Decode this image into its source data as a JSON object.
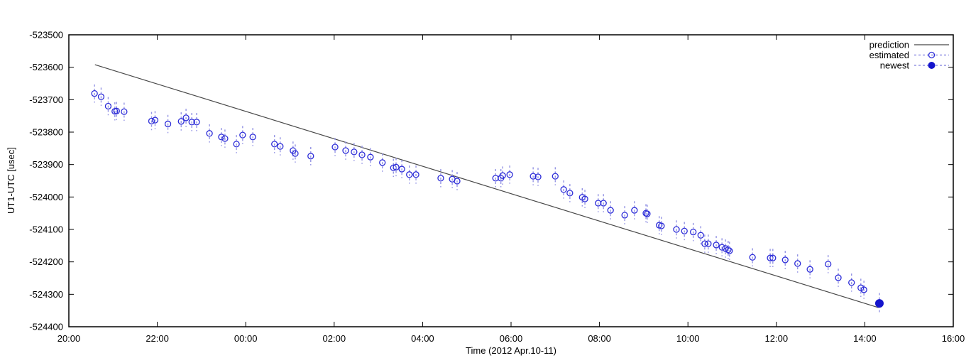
{
  "figure": {
    "background": "#ffffff"
  },
  "chart_data": {
    "type": "scatter",
    "title": "",
    "xlabel": "Time (2012 Apr.10-11)",
    "ylabel": "UT1-UTC [usec]",
    "x_unit": "hours since 20:00 of 2012 Apr.10",
    "x_tick_labels": [
      "20:00",
      "22:00",
      "00:00",
      "02:00",
      "04:00",
      "06:00",
      "08:00",
      "10:00",
      "12:00",
      "14:00",
      "16:00"
    ],
    "x_tick_hours": [
      0,
      2,
      4,
      6,
      8,
      10,
      12,
      14,
      16,
      18,
      20
    ],
    "x_range_hours": [
      0,
      20
    ],
    "ylim": [
      -524400,
      -523500
    ],
    "y_tick_step": 100,
    "grid": false,
    "legend_position": "top-right-inside",
    "legend": [
      {
        "label": "prediction",
        "style": "solid-line",
        "color": "#484848"
      },
      {
        "label": "estimated",
        "style": "dashed-open-circle",
        "color": "#2c2cd8"
      },
      {
        "label": "newest",
        "style": "dashed-filled-circle",
        "color": "#1414cc"
      }
    ],
    "series": [
      {
        "name": "prediction",
        "type": "line",
        "x_hours": [
          0.59,
          18.31
        ],
        "values": [
          -523592,
          -524341
        ]
      },
      {
        "name": "estimated",
        "type": "scatter-yerr",
        "err_usec": 28,
        "points": [
          [
            0.58,
            -523681
          ],
          [
            0.73,
            -523691
          ],
          [
            0.89,
            -523720
          ],
          [
            1.04,
            -523736
          ],
          [
            1.08,
            -523735
          ],
          [
            1.25,
            -523737
          ],
          [
            1.87,
            -523766
          ],
          [
            1.95,
            -523763
          ],
          [
            2.24,
            -523775
          ],
          [
            2.54,
            -523767
          ],
          [
            2.65,
            -523756
          ],
          [
            2.78,
            -523769
          ],
          [
            2.89,
            -523769
          ],
          [
            3.18,
            -523804
          ],
          [
            3.45,
            -523815
          ],
          [
            3.53,
            -523820
          ],
          [
            3.79,
            -523837
          ],
          [
            3.93,
            -523809
          ],
          [
            4.16,
            -523815
          ],
          [
            4.65,
            -523837
          ],
          [
            4.78,
            -523844
          ],
          [
            5.07,
            -523857
          ],
          [
            5.12,
            -523866
          ],
          [
            5.47,
            -523874
          ],
          [
            6.02,
            -523846
          ],
          [
            6.26,
            -523857
          ],
          [
            6.45,
            -523861
          ],
          [
            6.63,
            -523870
          ],
          [
            6.82,
            -523877
          ],
          [
            7.09,
            -523894
          ],
          [
            7.34,
            -523910
          ],
          [
            7.4,
            -523908
          ],
          [
            7.53,
            -523914
          ],
          [
            7.7,
            -523931
          ],
          [
            7.85,
            -523931
          ],
          [
            8.41,
            -523942
          ],
          [
            8.67,
            -523945
          ],
          [
            8.78,
            -523951
          ],
          [
            9.65,
            -523942
          ],
          [
            9.77,
            -523942
          ],
          [
            9.81,
            -523934
          ],
          [
            9.97,
            -523931
          ],
          [
            10.5,
            -523936
          ],
          [
            10.61,
            -523938
          ],
          [
            11.0,
            -523936
          ],
          [
            11.19,
            -523977
          ],
          [
            11.33,
            -523988
          ],
          [
            11.61,
            -524001
          ],
          [
            11.67,
            -524006
          ],
          [
            11.97,
            -524019
          ],
          [
            12.09,
            -524019
          ],
          [
            12.25,
            -524041
          ],
          [
            12.57,
            -524056
          ],
          [
            12.79,
            -524041
          ],
          [
            13.05,
            -524050
          ],
          [
            13.08,
            -524052
          ],
          [
            13.35,
            -524087
          ],
          [
            13.4,
            -524089
          ],
          [
            13.74,
            -524100
          ],
          [
            13.92,
            -524105
          ],
          [
            14.12,
            -524108
          ],
          [
            14.29,
            -524118
          ],
          [
            14.38,
            -524144
          ],
          [
            14.46,
            -524144
          ],
          [
            14.64,
            -524148
          ],
          [
            14.77,
            -524155
          ],
          [
            14.85,
            -524159
          ],
          [
            14.91,
            -524163
          ],
          [
            14.94,
            -524166
          ],
          [
            15.46,
            -524186
          ],
          [
            15.86,
            -524188
          ],
          [
            15.92,
            -524188
          ],
          [
            16.2,
            -524194
          ],
          [
            16.48,
            -524205
          ],
          [
            16.76,
            -524223
          ],
          [
            17.17,
            -524207
          ],
          [
            17.4,
            -524249
          ],
          [
            17.7,
            -524264
          ],
          [
            17.91,
            -524280
          ],
          [
            17.98,
            -524286
          ]
        ]
      },
      {
        "name": "newest",
        "type": "scatter-yerr",
        "err_usec": 32,
        "points": [
          [
            18.33,
            -524328
          ]
        ]
      }
    ],
    "colors": {
      "axis": "#000000",
      "prediction_line": "#484848",
      "marker": "#2c2cd8",
      "error_bar": "#9494e4",
      "newest_fill": "#1414cc"
    }
  }
}
